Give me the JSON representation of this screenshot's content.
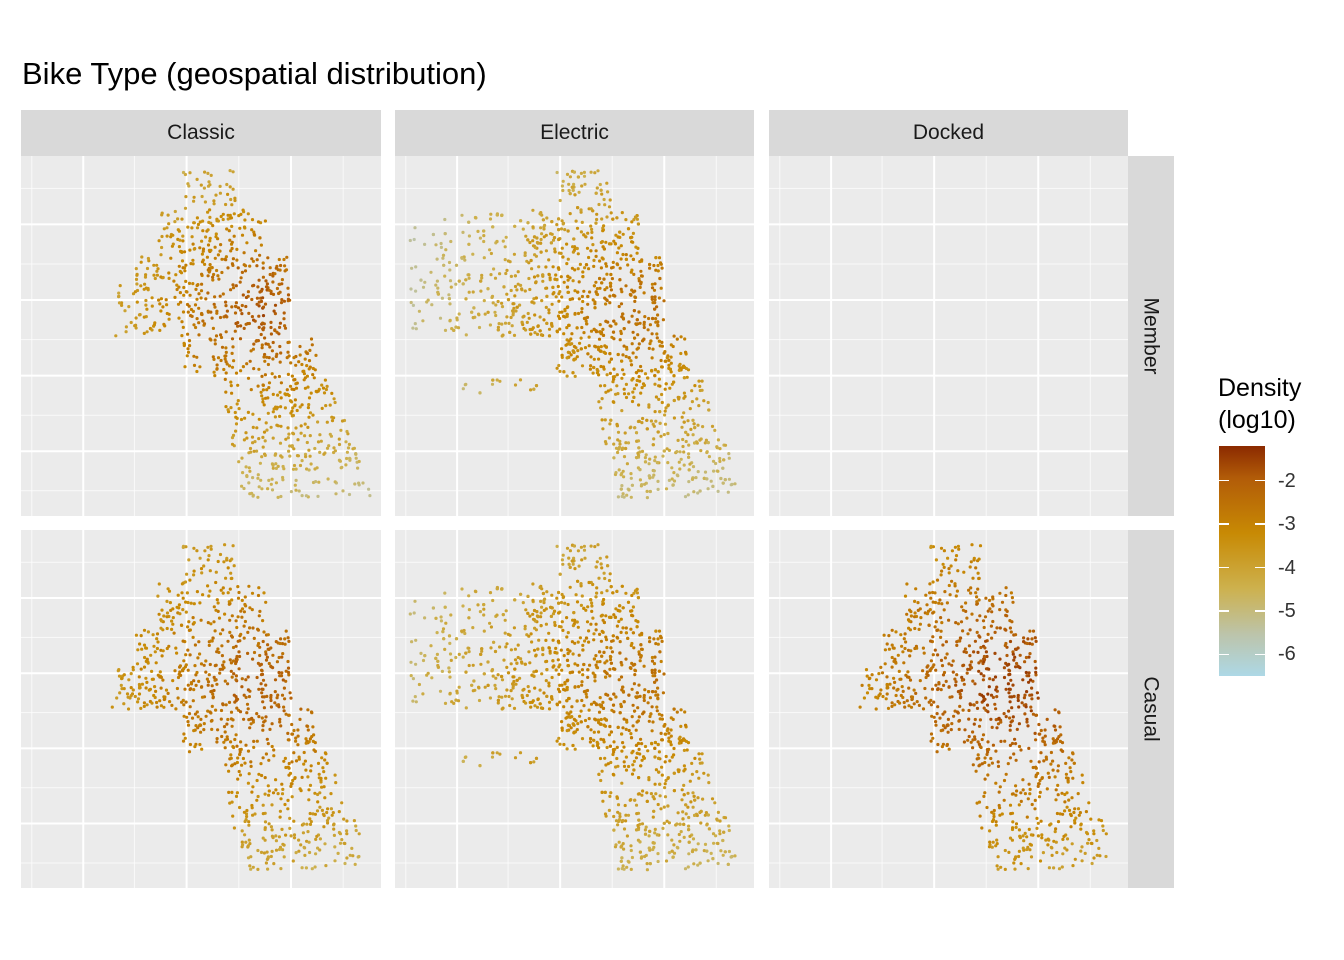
{
  "chart_data": {
    "type": "scatter",
    "title": "Bike Type (geospatial distribution)",
    "facet_columns": [
      "Classic",
      "Electric",
      "Docked"
    ],
    "facet_rows": [
      "Member",
      "Casual"
    ],
    "color_scale": {
      "title": "Density\n(log10)",
      "title_lines": [
        "Density",
        "(log10)"
      ],
      "ticks": [
        "-2",
        "-3",
        "-4",
        "-5",
        "-6"
      ],
      "range": [
        -6.5,
        -1.2
      ],
      "colors": [
        "#8b2a00",
        "#b25c08",
        "#c88a04",
        "#cdb14e",
        "#bcc4ab",
        "#add8e6"
      ]
    },
    "grid": true,
    "legend_position": "right",
    "panels": [
      {
        "column": "Classic",
        "row": "Member",
        "has_data": true,
        "hotspot_peak": -1.7
      },
      {
        "column": "Electric",
        "row": "Member",
        "has_data": true,
        "hotspot_peak": -2.3
      },
      {
        "column": "Docked",
        "row": "Member",
        "has_data": false
      },
      {
        "column": "Classic",
        "row": "Casual",
        "has_data": true,
        "hotspot_peak": -1.9
      },
      {
        "column": "Electric",
        "row": "Casual",
        "has_data": true,
        "hotspot_peak": -2.4
      },
      {
        "column": "Docked",
        "row": "Casual",
        "has_data": true,
        "hotspot_peak": -1.4
      }
    ]
  }
}
